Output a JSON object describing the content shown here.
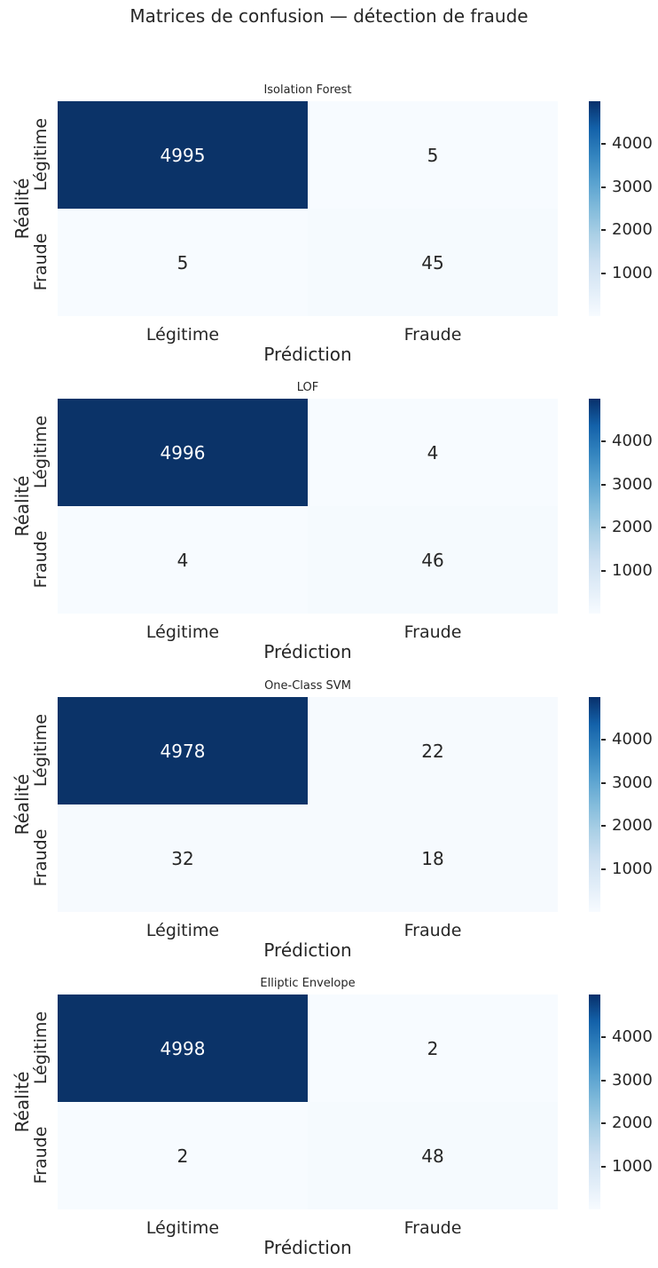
{
  "figure": {
    "title": "Matrices de confusion — détection de fraude",
    "background": "#ffffff",
    "text_color": "#262626"
  },
  "labels": {
    "x_axis": "Prédiction",
    "y_axis": "Réalité",
    "x_tick_0": "Légitime",
    "x_tick_1": "Fraude",
    "y_tick_0": "Légitime",
    "y_tick_1": "Fraude"
  },
  "colorbar": {
    "colormap": "Blues",
    "min_color": "#f7fbff",
    "max_color": "#08306b",
    "ticks": [
      {
        "label": "4000",
        "top_pct": "20%"
      },
      {
        "label": "3000",
        "top_pct": "40%"
      },
      {
        "label": "2000",
        "top_pct": "60%"
      },
      {
        "label": "1000",
        "top_pct": "80%"
      }
    ]
  },
  "charts": [
    {
      "title": "Isolation Forest",
      "cells": [
        {
          "value": "4995",
          "bg": "#0b3368",
          "fg": "#ffffff"
        },
        {
          "value": "5",
          "bg": "#f7fbff",
          "fg": "#262626"
        },
        {
          "value": "5",
          "bg": "#f7fbff",
          "fg": "#262626"
        },
        {
          "value": "45",
          "bg": "#f5fafe",
          "fg": "#262626"
        }
      ]
    },
    {
      "title": "LOF",
      "cells": [
        {
          "value": "4996",
          "bg": "#0b3368",
          "fg": "#ffffff"
        },
        {
          "value": "4",
          "bg": "#f7fbff",
          "fg": "#262626"
        },
        {
          "value": "4",
          "bg": "#f7fbff",
          "fg": "#262626"
        },
        {
          "value": "46",
          "bg": "#f5fafe",
          "fg": "#262626"
        }
      ]
    },
    {
      "title": "One-Class SVM",
      "cells": [
        {
          "value": "4978",
          "bg": "#0b3368",
          "fg": "#ffffff"
        },
        {
          "value": "22",
          "bg": "#f6fafe",
          "fg": "#262626"
        },
        {
          "value": "32",
          "bg": "#f6fafe",
          "fg": "#262626"
        },
        {
          "value": "18",
          "bg": "#f6fafe",
          "fg": "#262626"
        }
      ]
    },
    {
      "title": "Elliptic Envelope",
      "cells": [
        {
          "value": "4998",
          "bg": "#0b3368",
          "fg": "#ffffff"
        },
        {
          "value": "2",
          "bg": "#f7fbff",
          "fg": "#262626"
        },
        {
          "value": "2",
          "bg": "#f7fbff",
          "fg": "#262626"
        },
        {
          "value": "48",
          "bg": "#f5fafe",
          "fg": "#262626"
        }
      ]
    }
  ],
  "chart_data": [
    {
      "type": "heatmap",
      "title": "Isolation Forest",
      "suptitle": "Matrices de confusion — détection de fraude",
      "xlabel": "Prédiction",
      "ylabel": "Réalité",
      "x_categories": [
        "Légitime",
        "Fraude"
      ],
      "y_categories": [
        "Légitime",
        "Fraude"
      ],
      "matrix": [
        [
          4995,
          5
        ],
        [
          5,
          45
        ]
      ],
      "colormap": "Blues",
      "colorbar_ticks": [
        1000,
        2000,
        3000,
        4000
      ],
      "colorbar_range_estimate": [
        0,
        5000
      ],
      "legend_position": "right-colorbar",
      "grid": false
    },
    {
      "type": "heatmap",
      "title": "LOF",
      "xlabel": "Prédiction",
      "ylabel": "Réalité",
      "x_categories": [
        "Légitime",
        "Fraude"
      ],
      "y_categories": [
        "Légitime",
        "Fraude"
      ],
      "matrix": [
        [
          4996,
          4
        ],
        [
          4,
          46
        ]
      ],
      "colormap": "Blues",
      "colorbar_ticks": [
        1000,
        2000,
        3000,
        4000
      ],
      "colorbar_range_estimate": [
        0,
        5000
      ],
      "legend_position": "right-colorbar",
      "grid": false
    },
    {
      "type": "heatmap",
      "title": "One-Class SVM",
      "xlabel": "Prédiction",
      "ylabel": "Réalité",
      "x_categories": [
        "Légitime",
        "Fraude"
      ],
      "y_categories": [
        "Légitime",
        "Fraude"
      ],
      "matrix": [
        [
          4978,
          22
        ],
        [
          32,
          18
        ]
      ],
      "colormap": "Blues",
      "colorbar_ticks": [
        1000,
        2000,
        3000,
        4000
      ],
      "colorbar_range_estimate": [
        0,
        5000
      ],
      "legend_position": "right-colorbar",
      "grid": false
    },
    {
      "type": "heatmap",
      "title": "Elliptic Envelope",
      "xlabel": "Prédiction",
      "ylabel": "Réalité",
      "x_categories": [
        "Légitime",
        "Fraude"
      ],
      "y_categories": [
        "Légitime",
        "Fraude"
      ],
      "matrix": [
        [
          4998,
          2
        ],
        [
          2,
          48
        ]
      ],
      "colormap": "Blues",
      "colorbar_ticks": [
        1000,
        2000,
        3000,
        4000
      ],
      "colorbar_range_estimate": [
        0,
        5000
      ],
      "legend_position": "right-colorbar",
      "grid": false
    }
  ]
}
